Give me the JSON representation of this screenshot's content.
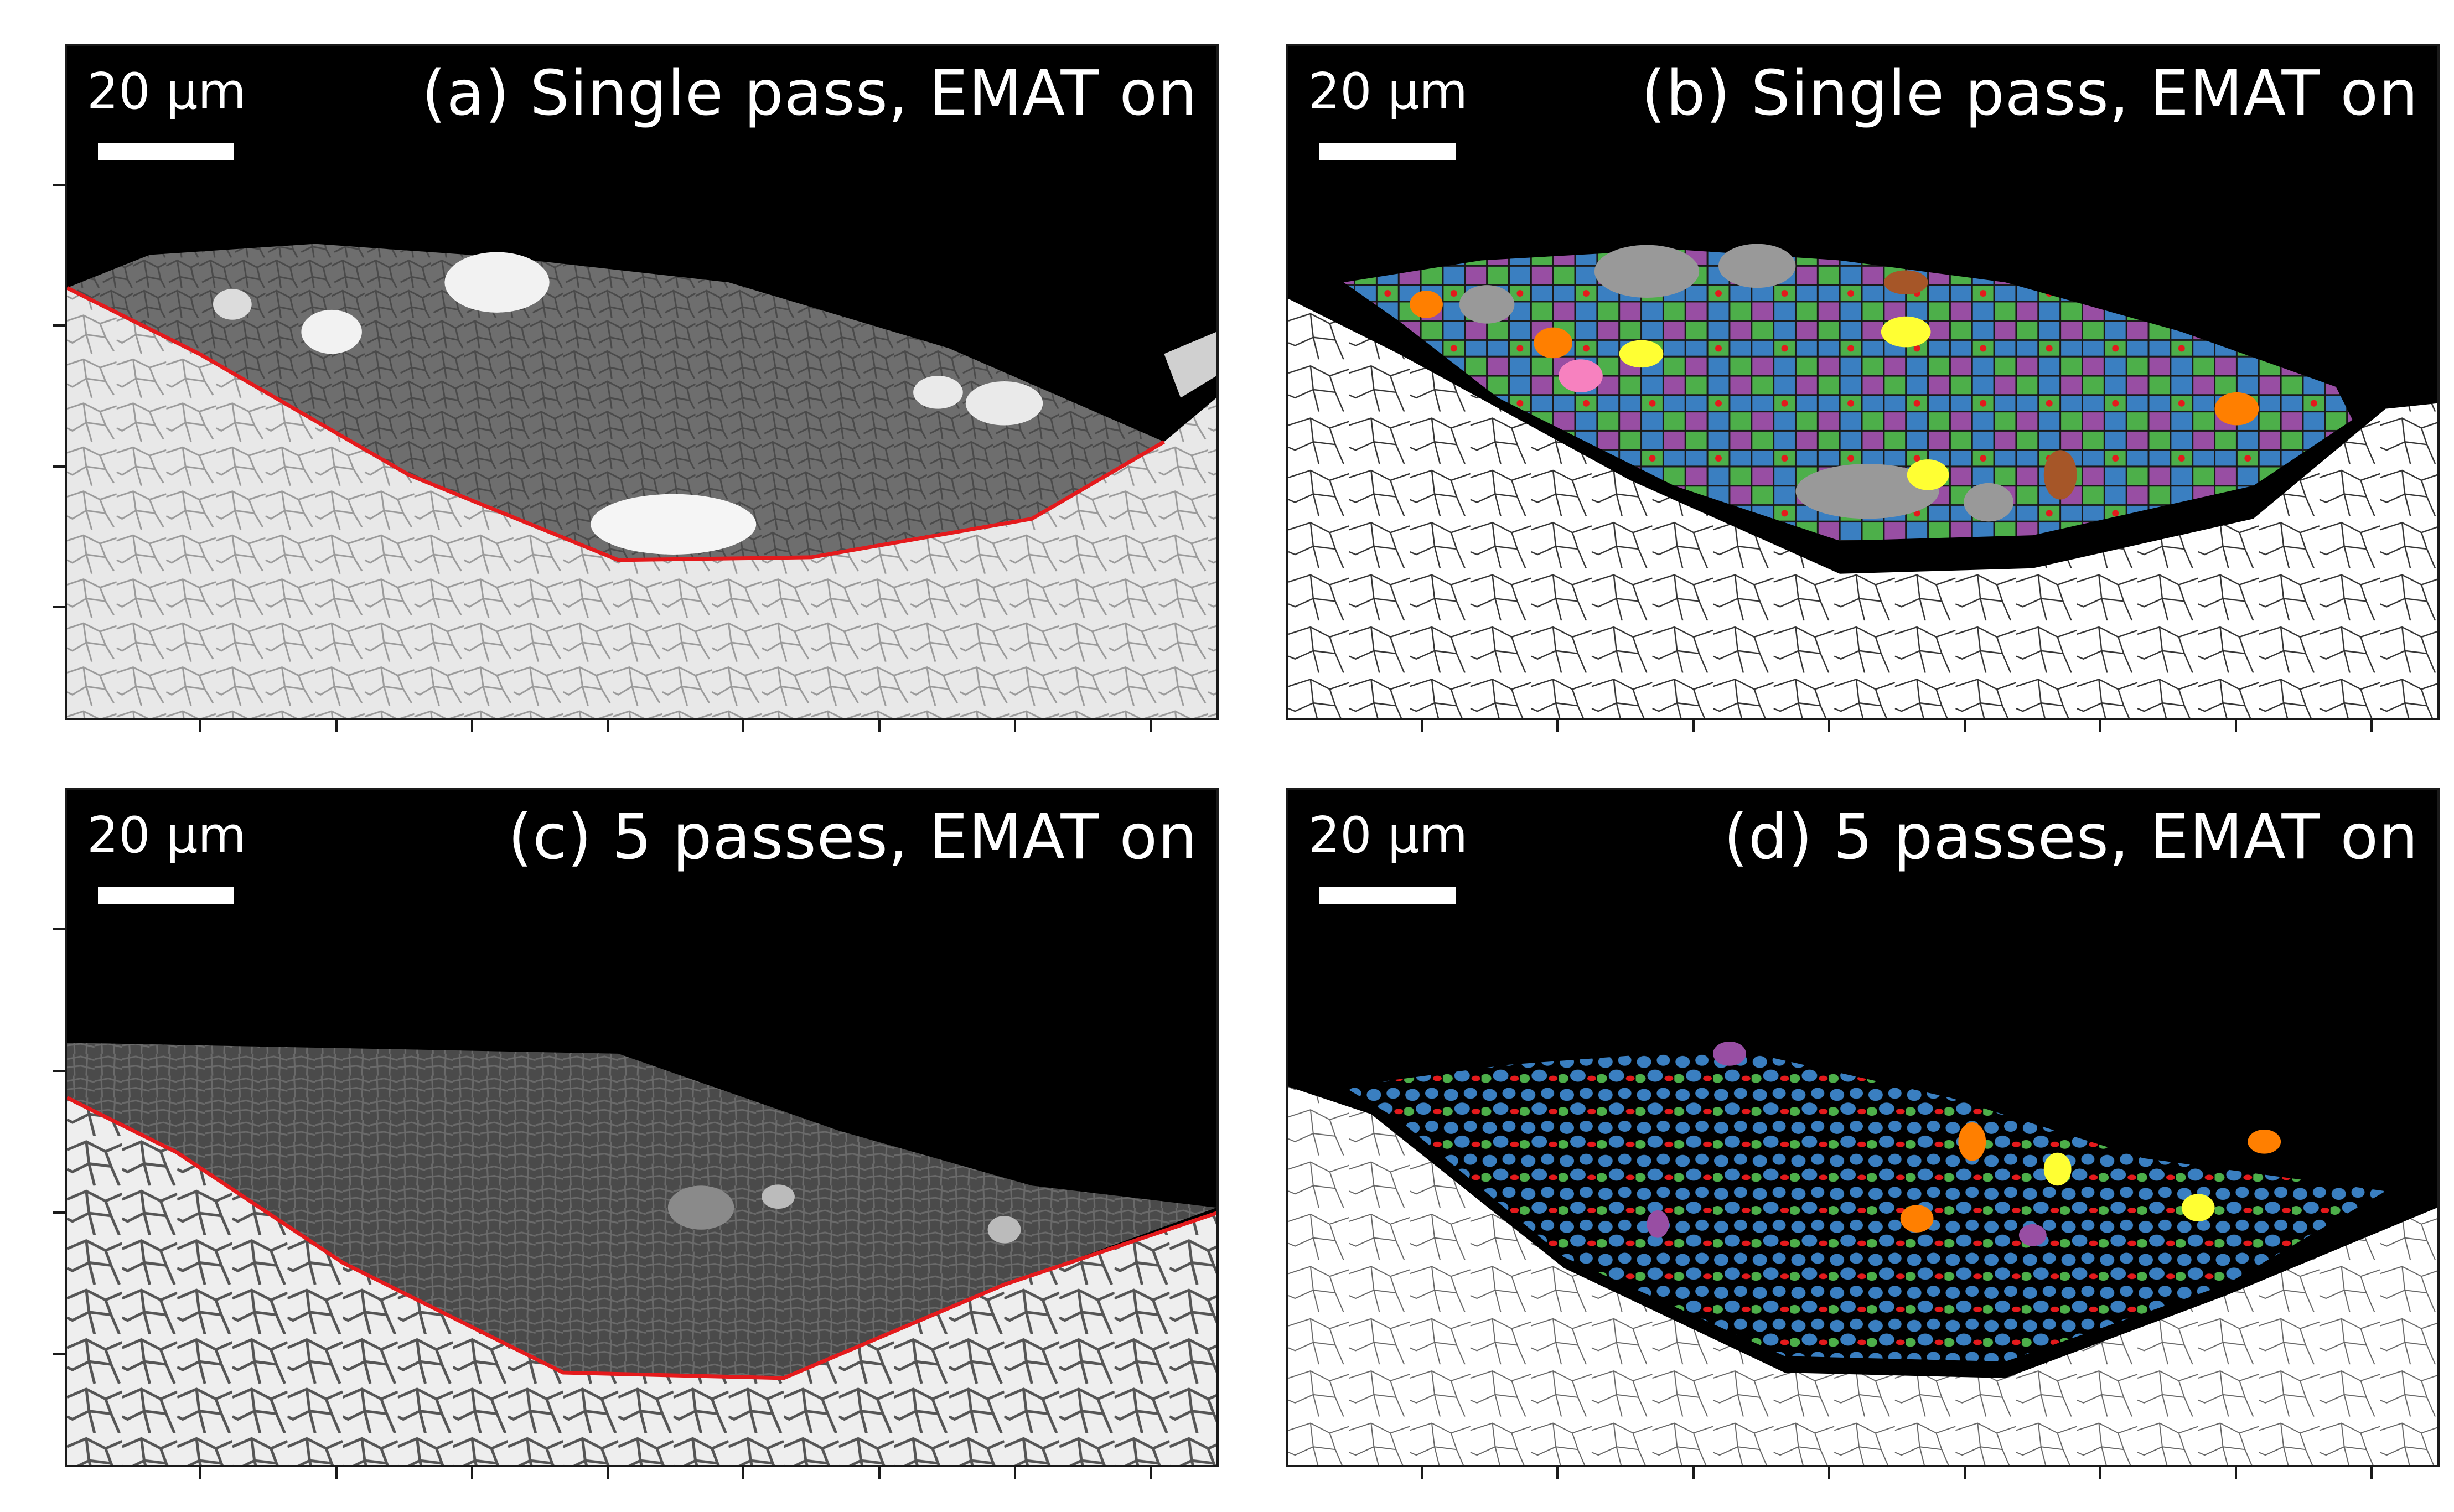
{
  "panels": [
    {
      "id": "a",
      "title": "(a) Single pass, EMAT on",
      "scale_bar_label": "20 µm",
      "kind": "micrograph"
    },
    {
      "id": "b",
      "title": "(b) Single pass, EMAT on",
      "scale_bar_label": "20 µm",
      "kind": "grain-map"
    },
    {
      "id": "c",
      "title": "(c) 5 passes, EMAT on",
      "scale_bar_label": "20 µm",
      "kind": "micrograph"
    },
    {
      "id": "d",
      "title": "(d) 5 passes, EMAT on",
      "scale_bar_label": "20 µm",
      "kind": "grain-map"
    }
  ],
  "colors": {
    "background": "#000000",
    "substrate": "#ffffff",
    "boundary_line": "#e41a1c",
    "grain_blue": "#3a7fc1",
    "grain_green": "#4daf4a",
    "grain_purple": "#984ea3",
    "grain_orange": "#ff7f00",
    "grain_yellow": "#ffff33",
    "grain_gray": "#999999",
    "grain_pink": "#f781bf",
    "grain_brown": "#a65628",
    "grain_red": "#e41a1c"
  }
}
